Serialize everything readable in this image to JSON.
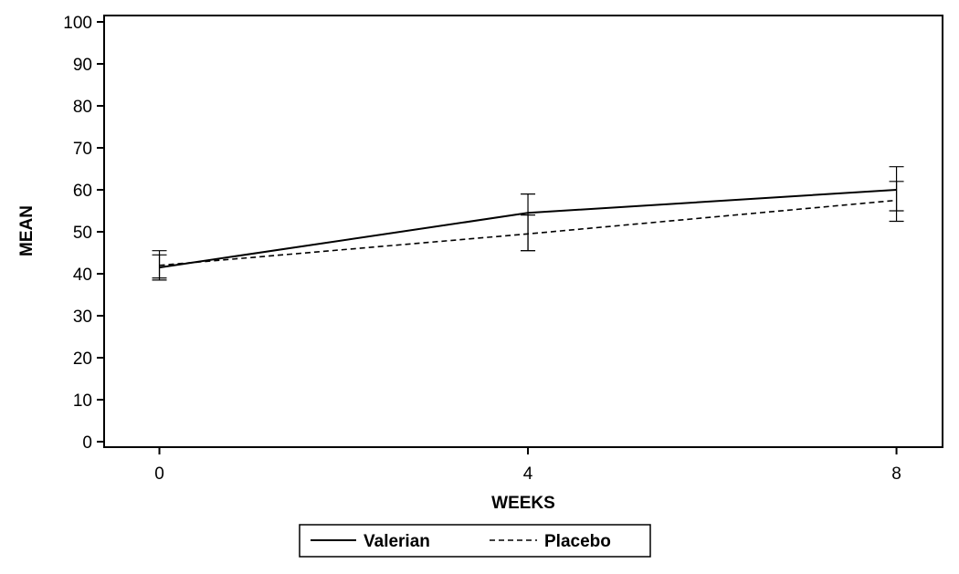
{
  "chart_data": {
    "type": "line",
    "xlabel": "WEEKS",
    "ylabel": "MEAN",
    "x": [
      0,
      4,
      8
    ],
    "xticks": [
      0,
      4,
      8
    ],
    "xlim": [
      -0.6,
      8.5
    ],
    "ylim": [
      0,
      100
    ],
    "yticks": [
      0,
      10,
      20,
      30,
      40,
      50,
      60,
      70,
      80,
      90,
      100
    ],
    "grid": false,
    "legend": "bottom",
    "series": [
      {
        "name": "Valerian",
        "line_style": "solid",
        "values": [
          41.5,
          54.5,
          60.0
        ],
        "error_low": [
          38.5,
          45.5,
          55.0
        ],
        "error_high": [
          44.5,
          59.0,
          65.5
        ]
      },
      {
        "name": "Placebo",
        "line_style": "dashed",
        "values": [
          42.0,
          49.5,
          57.5
        ],
        "error_low": [
          39.0,
          45.5,
          52.5
        ],
        "error_high": [
          45.5,
          54.0,
          62.0
        ]
      }
    ]
  }
}
